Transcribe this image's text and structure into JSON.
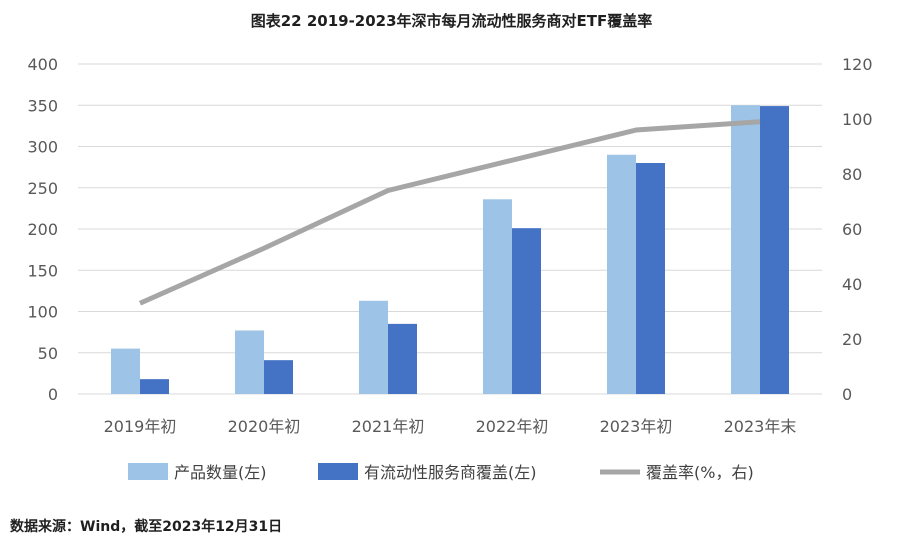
{
  "chart_data": {
    "type": "bar",
    "title": "图表22   2019-2023年深市每月流动性服务商对ETF覆盖率",
    "categories": [
      "2019年初",
      "2020年初",
      "2021年初",
      "2022年初",
      "2023年初",
      "2023年末"
    ],
    "series": [
      {
        "name": "产品数量(左)",
        "type": "bar",
        "axis": "left",
        "color": "#9dc3e6",
        "values": [
          55,
          77,
          113,
          236,
          290,
          350
        ]
      },
      {
        "name": "有流动性服务商覆盖(左)",
        "type": "bar",
        "axis": "left",
        "color": "#4472c4",
        "values": [
          18,
          41,
          85,
          201,
          280,
          349
        ]
      },
      {
        "name": "覆盖率(%，右)",
        "type": "line",
        "axis": "right",
        "color": "#a6a6a6",
        "values": [
          33,
          53,
          74,
          85,
          96,
          99
        ]
      }
    ],
    "ylim_left": [
      0,
      400
    ],
    "yticks_left": [
      "0",
      "50",
      "100",
      "150",
      "200",
      "250",
      "300",
      "350",
      "400"
    ],
    "ylim_right": [
      0,
      120
    ],
    "yticks_right": [
      "0",
      "20",
      "40",
      "60",
      "80",
      "100",
      "120"
    ],
    "grid": true,
    "legend_position": "bottom"
  },
  "source_note": "数据来源：Wind，截至2023年12月31日"
}
